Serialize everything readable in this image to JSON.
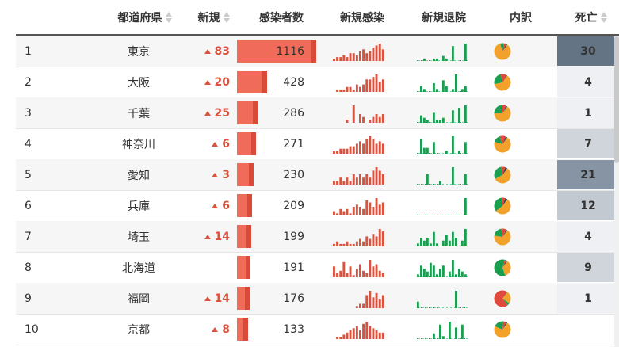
{
  "headers": {
    "prefecture": "都道府県",
    "new": "新規",
    "infected": "感染者数",
    "new_infections": "新規感染",
    "new_discharged": "新規退院",
    "breakdown": "内訳",
    "deaths": "死亡"
  },
  "colors": {
    "bar": "#f06b5a",
    "bar_edge": "#d94a39",
    "spark_red": "#d9533e",
    "spark_green": "#1a9e50",
    "pie_orange": "#f2a12b",
    "pie_green": "#1a9e50",
    "pie_red": "#e0493b",
    "pie_dark": "#2c3e50"
  },
  "max_infected": 1116,
  "rows": [
    {
      "rank": "1",
      "pref": "東京",
      "new": "83",
      "infected": "1116",
      "deaths": "30",
      "death_bg": "#657485",
      "inf": [
        1,
        2,
        2,
        3,
        2,
        4,
        4,
        3,
        5,
        6,
        4,
        5,
        7,
        8,
        9,
        6
      ],
      "dis": [
        0,
        0,
        1,
        0,
        0,
        1,
        1,
        0,
        2,
        1,
        0,
        6,
        0,
        0,
        0,
        7
      ],
      "pie": [
        0.86,
        0.07,
        0.05,
        0.02
      ]
    },
    {
      "rank": "2",
      "pref": "大阪",
      "new": "20",
      "infected": "428",
      "deaths": "4",
      "death_bg": "#eef0f3",
      "inf": [
        0,
        1,
        1,
        1,
        2,
        2,
        1,
        3,
        2,
        3,
        5,
        5,
        6,
        7,
        4,
        5
      ],
      "dis": [
        0,
        2,
        1,
        0,
        0,
        3,
        1,
        0,
        4,
        2,
        0,
        1,
        6,
        0,
        1,
        2
      ],
      "pie": [
        0.62,
        0.25,
        0.12,
        0.01
      ]
    },
    {
      "rank": "3",
      "pref": "千葉",
      "new": "25",
      "infected": "286",
      "deaths": "1",
      "death_bg": "#eef0f3",
      "inf": [
        0,
        0,
        0,
        0,
        1,
        0,
        6,
        0,
        3,
        2,
        0,
        1,
        2,
        3,
        2,
        3
      ],
      "dis": [
        0,
        3,
        2,
        1,
        0,
        4,
        1,
        1,
        2,
        0,
        0,
        5,
        0,
        6,
        0,
        7
      ],
      "pie": [
        0.65,
        0.24,
        0.09,
        0.02
      ]
    },
    {
      "rank": "4",
      "pref": "神奈川",
      "new": "6",
      "infected": "271",
      "deaths": "7",
      "death_bg": "#d0d5db",
      "inf": [
        1,
        1,
        2,
        2,
        2,
        3,
        3,
        4,
        5,
        4,
        6,
        7,
        6,
        4,
        5,
        4
      ],
      "dis": [
        0,
        5,
        2,
        2,
        0,
        4,
        0,
        0,
        0,
        1,
        0,
        6,
        0,
        1,
        0,
        4
      ],
      "pie": [
        0.7,
        0.15,
        0.12,
        0.03
      ]
    },
    {
      "rank": "5",
      "pref": "愛知",
      "new": "3",
      "infected": "230",
      "deaths": "21",
      "death_bg": "#8794a3",
      "inf": [
        1,
        1,
        2,
        1,
        2,
        1,
        3,
        2,
        3,
        2,
        3,
        2,
        4,
        5,
        4,
        3
      ],
      "dis": [
        0,
        0,
        0,
        3,
        0,
        0,
        0,
        1,
        0,
        0,
        0,
        5,
        0,
        0,
        0,
        3
      ],
      "pie": [
        0.58,
        0.3,
        0.08,
        0.04
      ]
    },
    {
      "rank": "6",
      "pref": "兵庫",
      "new": "6",
      "infected": "209",
      "deaths": "12",
      "death_bg": "#c3c9d1",
      "inf": [
        2,
        1,
        3,
        2,
        3,
        1,
        4,
        5,
        4,
        3,
        7,
        6,
        4,
        8,
        5,
        6
      ],
      "dis": [
        0,
        0,
        0,
        0,
        0,
        0,
        0,
        0,
        0,
        0,
        0,
        0,
        0,
        0,
        0,
        8
      ],
      "pie": [
        0.55,
        0.35,
        0.06,
        0.04
      ]
    },
    {
      "rank": "7",
      "pref": "埼玉",
      "new": "14",
      "infected": "199",
      "deaths": "4",
      "death_bg": "#eef0f3",
      "inf": [
        1,
        2,
        1,
        1,
        2,
        1,
        1,
        2,
        3,
        2,
        4,
        3,
        5,
        4,
        7,
        6
      ],
      "dis": [
        1,
        3,
        2,
        3,
        1,
        5,
        1,
        0,
        2,
        4,
        2,
        5,
        3,
        0,
        2,
        6
      ],
      "pie": [
        0.68,
        0.2,
        0.1,
        0.02
      ]
    },
    {
      "rank": "8",
      "pref": "北海道",
      "new": "",
      "infected": "191",
      "deaths": "9",
      "death_bg": "#d0d5db",
      "inf": [
        5,
        2,
        3,
        7,
        2,
        5,
        1,
        4,
        6,
        3,
        2,
        8,
        5,
        6,
        3,
        2
      ],
      "dis": [
        1,
        4,
        3,
        2,
        5,
        4,
        1,
        3,
        4,
        0,
        2,
        6,
        1,
        3,
        2,
        1
      ],
      "pie": [
        0.35,
        0.6,
        0.03,
        0.02
      ]
    },
    {
      "rank": "9",
      "pref": "福岡",
      "new": "14",
      "infected": "176",
      "deaths": "1",
      "death_bg": "#eef0f3",
      "inf": [
        0,
        0,
        0,
        0,
        0,
        0,
        0,
        1,
        2,
        2,
        6,
        8,
        5,
        7,
        4,
        6
      ],
      "dis": [
        3,
        0,
        0,
        0,
        0,
        0,
        0,
        0,
        0,
        0,
        0,
        0,
        8,
        0,
        0,
        0
      ],
      "pie": [
        0.25,
        0.05,
        0.69,
        0.01
      ]
    },
    {
      "rank": "10",
      "pref": "京都",
      "new": "8",
      "infected": "133",
      "deaths": "",
      "death_bg": "#ffffff",
      "inf": [
        0,
        1,
        1,
        2,
        3,
        4,
        5,
        6,
        4,
        7,
        8,
        6,
        5,
        4,
        3,
        3
      ],
      "dis": [
        0,
        0,
        0,
        0,
        0,
        2,
        0,
        5,
        1,
        0,
        6,
        0,
        4,
        0,
        5,
        0
      ],
      "pie": [
        0.72,
        0.2,
        0.06,
        0.02
      ]
    }
  ]
}
